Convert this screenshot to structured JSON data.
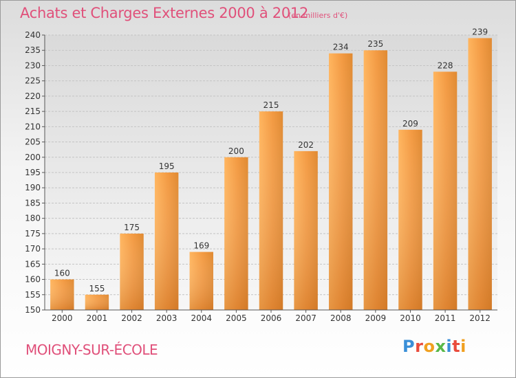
{
  "title": "Achats et Charges Externes 2000 à 2012",
  "unit_note": "(en milliers d'€)",
  "commune": "MOIGNY-SUR-ÉCOLE",
  "logo": {
    "text": "Proxiti",
    "letter_colors": [
      "#3a8fd8",
      "#e94b3c",
      "#f0a020",
      "#58b848",
      "#3a8fd8",
      "#e94b3c",
      "#f0a020"
    ]
  },
  "colors": {
    "title": "#e0507a",
    "bar_light": "#f7a850",
    "bar_dark": "#d8771f",
    "axis": "#555555",
    "grid": "#b8b8b8"
  },
  "chart_data": {
    "type": "bar",
    "title": "Achats et Charges Externes 2000 à 2012",
    "subtitle": "(en milliers d'€)",
    "xlabel": "",
    "ylabel": "",
    "categories": [
      "2000",
      "2001",
      "2002",
      "2003",
      "2004",
      "2005",
      "2006",
      "2007",
      "2008",
      "2009",
      "2010",
      "2011",
      "2012"
    ],
    "values": [
      160,
      155,
      175,
      195,
      169,
      200,
      215,
      202,
      234,
      235,
      209,
      228,
      239
    ],
    "ylim": [
      150,
      240
    ],
    "yticks": [
      150,
      155,
      160,
      165,
      170,
      175,
      180,
      185,
      190,
      195,
      200,
      205,
      210,
      215,
      220,
      225,
      230,
      235,
      240
    ],
    "grid": true,
    "data_labels": true
  }
}
